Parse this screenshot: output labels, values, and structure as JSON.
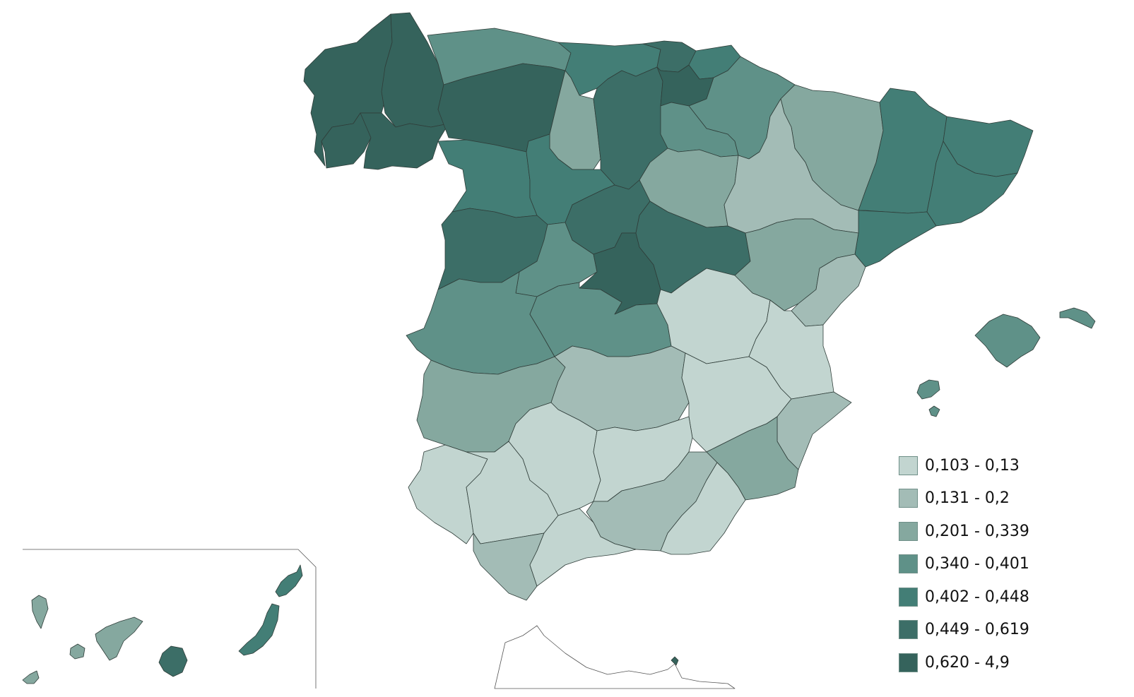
{
  "classes": [
    {
      "label": "0,103 - 0,13",
      "color": "#c2d5d0"
    },
    {
      "label": "0,131 - 0,2",
      "color": "#a3bcb6"
    },
    {
      "label": "0,201 - 0,339",
      "color": "#85a89f"
    },
    {
      "label": "0,340 - 0,401",
      "color": "#5f9188"
    },
    {
      "label": "0,402 - 0,448",
      "color": "#437e76"
    },
    {
      "label": "0,449 - 0,619",
      "color": "#3c6e67"
    },
    {
      "label": "0,620 - 4,9",
      "color": "#35635c"
    }
  ],
  "regions": [
    {
      "name": "A Coruña",
      "class": 6
    },
    {
      "name": "Lugo",
      "class": 6
    },
    {
      "name": "Pontevedra",
      "class": 6
    },
    {
      "name": "Ourense",
      "class": 6
    },
    {
      "name": "Asturias",
      "class": 3
    },
    {
      "name": "León",
      "class": 6
    },
    {
      "name": "Cantabria",
      "class": 4
    },
    {
      "name": "Palencia",
      "class": 2
    },
    {
      "name": "Burgos",
      "class": 5
    },
    {
      "name": "Bizkaia",
      "class": 5
    },
    {
      "name": "Gipuzkoa",
      "class": 4
    },
    {
      "name": "Araba",
      "class": 6
    },
    {
      "name": "Navarra",
      "class": 3
    },
    {
      "name": "La Rioja",
      "class": 3
    },
    {
      "name": "Huesca",
      "class": 2
    },
    {
      "name": "Lleida",
      "class": 4
    },
    {
      "name": "Girona",
      "class": 4
    },
    {
      "name": "Barcelona",
      "class": 4
    },
    {
      "name": "Tarragona",
      "class": 4
    },
    {
      "name": "Zamora",
      "class": 4
    },
    {
      "name": "Valladolid",
      "class": 4
    },
    {
      "name": "Soria",
      "class": 2
    },
    {
      "name": "Zaragoza",
      "class": 1
    },
    {
      "name": "Salamanca",
      "class": 5
    },
    {
      "name": "Ávila",
      "class": 3
    },
    {
      "name": "Segovia",
      "class": 5
    },
    {
      "name": "Madrid",
      "class": 6
    },
    {
      "name": "Guadalajara",
      "class": 5
    },
    {
      "name": "Teruel",
      "class": 2
    },
    {
      "name": "Castellón",
      "class": 1
    },
    {
      "name": "Cáceres",
      "class": 3
    },
    {
      "name": "Toledo",
      "class": 3
    },
    {
      "name": "Cuenca",
      "class": 0
    },
    {
      "name": "Valencia",
      "class": 0
    },
    {
      "name": "Badajoz",
      "class": 2
    },
    {
      "name": "Ciudad Real",
      "class": 1
    },
    {
      "name": "Albacete",
      "class": 0
    },
    {
      "name": "Alicante",
      "class": 1
    },
    {
      "name": "Murcia",
      "class": 2
    },
    {
      "name": "Huelva",
      "class": 0
    },
    {
      "name": "Sevilla",
      "class": 0
    },
    {
      "name": "Córdoba",
      "class": 0
    },
    {
      "name": "Jaén",
      "class": 0
    },
    {
      "name": "Granada",
      "class": 1
    },
    {
      "name": "Almería",
      "class": 0
    },
    {
      "name": "Cádiz",
      "class": 1
    },
    {
      "name": "Málaga",
      "class": 0
    },
    {
      "name": "Mallorca",
      "class": 3
    },
    {
      "name": "Menorca",
      "class": 3
    },
    {
      "name": "Ibiza",
      "class": 3
    },
    {
      "name": "Formentera",
      "class": 3
    },
    {
      "name": "La Palma",
      "class": 2
    },
    {
      "name": "El Hierro",
      "class": 2
    },
    {
      "name": "La Gomera",
      "class": 2
    },
    {
      "name": "Tenerife",
      "class": 2
    },
    {
      "name": "Gran Canaria",
      "class": 5
    },
    {
      "name": "Fuerteventura",
      "class": 4
    },
    {
      "name": "Lanzarote",
      "class": 4
    },
    {
      "name": "Ceuta",
      "class": 6
    }
  ],
  "background_color": "#ffffff",
  "border_color": "#2f3d39"
}
